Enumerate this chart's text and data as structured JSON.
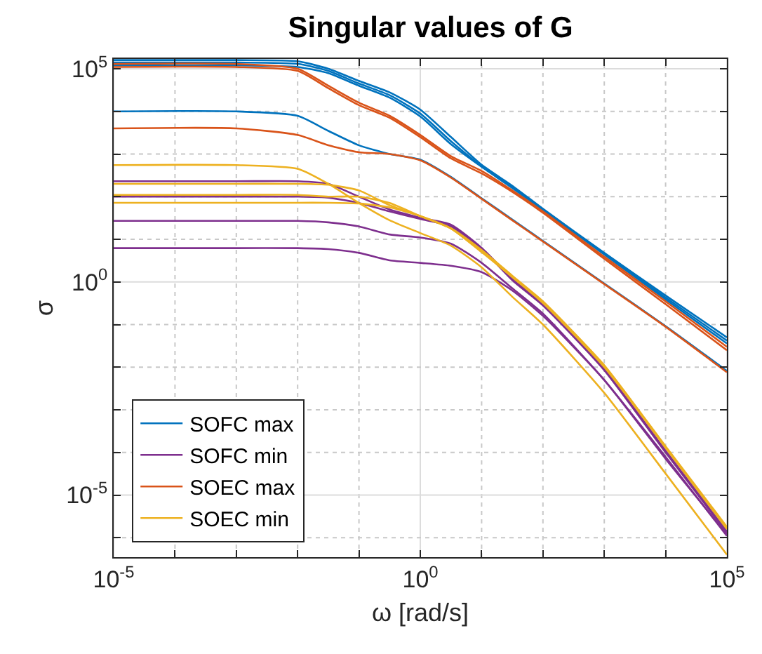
{
  "chart_data": {
    "type": "line",
    "title": "Singular values of G",
    "xlabel": "ω [rad/s]",
    "ylabel": "σ",
    "log": "xy",
    "grid": true,
    "legend": "bottom left",
    "line_style": "solid",
    "marker": "none",
    "x": [
      1e-05,
      0.001,
      0.01,
      0.0316,
      0.1,
      0.316,
      1,
      3.16,
      10,
      31.6,
      100,
      1000,
      10000,
      100000
    ],
    "xlim": [
      1e-05,
      100000
    ],
    "ylim": [
      3.5e-07,
      170000
    ],
    "xticks": [
      {
        "value": 1e-05,
        "label": "10$^{-5}$"
      },
      {
        "value": 0.0001,
        "label": null
      },
      {
        "value": 0.001,
        "label": null
      },
      {
        "value": 0.01,
        "label": null
      },
      {
        "value": 0.1,
        "label": null
      },
      {
        "value": 1,
        "label": "10$^{0}$"
      },
      {
        "value": 10,
        "label": null
      },
      {
        "value": 100,
        "label": null
      },
      {
        "value": 1000,
        "label": null
      },
      {
        "value": 10000,
        "label": null
      },
      {
        "value": 100000,
        "label": "10$^{5}$"
      }
    ],
    "yticks": [
      {
        "value": 1e-06,
        "label": null
      },
      {
        "value": 1e-05,
        "label": "10$^{-5}$"
      },
      {
        "value": 0.0001,
        "label": null
      },
      {
        "value": 0.001,
        "label": null
      },
      {
        "value": 0.01,
        "label": null
      },
      {
        "value": 0.1,
        "label": null
      },
      {
        "value": 1,
        "label": "10$^{0}$"
      },
      {
        "value": 10,
        "label": null
      },
      {
        "value": 100,
        "label": null
      },
      {
        "value": 1000,
        "label": null
      },
      {
        "value": 10000,
        "label": null
      },
      {
        "value": 100000,
        "label": "10$^{5}$"
      }
    ],
    "series": [
      {
        "name": "SOFC max",
        "color": "#0072bd",
        "values": [
          160000,
          160000,
          150000,
          100000,
          52000,
          28000,
          11000,
          2500,
          560,
          180,
          52,
          4.8,
          0.48,
          0.05
        ]
      },
      {
        "color": "#0072bd",
        "values": [
          140000,
          140000,
          130000,
          89000,
          45000,
          24000,
          8900,
          2000,
          520,
          170,
          50,
          4.6,
          0.43,
          0.042
        ]
      },
      {
        "color": "#0072bd",
        "values": [
          120000,
          120000,
          110000,
          79000,
          40000,
          21000,
          7600,
          1700,
          500,
          160,
          48,
          4.4,
          0.39,
          0.036
        ]
      },
      {
        "color": "#0072bd",
        "values": [
          10000,
          10000,
          7900,
          3500,
          1600,
          1000,
          740,
          290,
          92,
          29,
          9.2,
          0.92,
          0.092,
          0.0082
        ]
      },
      {
        "name": "SOFC min",
        "color": "#7e2f8e",
        "values": [
          230,
          230,
          230,
          200,
          100,
          50,
          32,
          22,
          6.3,
          1.2,
          0.3,
          0.009,
          0.00011,
          1.4e-06
        ]
      },
      {
        "color": "#7e2f8e",
        "values": [
          100,
          100,
          100,
          95,
          71,
          45,
          30,
          20,
          6.0,
          1.1,
          0.28,
          0.0085,
          0.0001,
          1.3e-06
        ]
      },
      {
        "color": "#7e2f8e",
        "values": [
          27,
          27,
          27,
          25,
          20,
          13,
          11,
          7.9,
          2.8,
          0.71,
          0.18,
          0.005,
          7.9e-05,
          1.1e-06
        ]
      },
      {
        "color": "#7e2f8e",
        "values": [
          6.2,
          6.2,
          6.2,
          5.9,
          4.8,
          3.2,
          2.8,
          2.4,
          1.7,
          0.63,
          0.16,
          0.005,
          7.1e-05,
          1.2e-06
        ]
      },
      {
        "name": "SOEC max",
        "color": "#d95319",
        "values": [
          130000,
          130000,
          100000,
          40000,
          16000,
          7900,
          2800,
          890,
          400,
          140,
          45,
          3.9,
          0.35,
          0.03
        ]
      },
      {
        "color": "#d95319",
        "values": [
          110000,
          110000,
          89000,
          35000,
          14000,
          7100,
          2500,
          790,
          350,
          130,
          42,
          3.5,
          0.3,
          0.025
        ]
      },
      {
        "color": "#d95319",
        "values": [
          4000,
          4000,
          2800,
          1600,
          1100,
          1000,
          710,
          280,
          89,
          28,
          8.9,
          0.89,
          0.089,
          0.0076
        ]
      },
      {
        "name": "SOEC min",
        "color": "#edb120",
        "values": [
          550,
          550,
          450,
          200,
          71,
          28,
          14,
          7.1,
          2.2,
          0.45,
          0.1,
          0.0025,
          3.2e-05,
          4e-07
        ]
      },
      {
        "color": "#edb120",
        "values": [
          200,
          200,
          200,
          190,
          140,
          63,
          35,
          18,
          5.6,
          1.4,
          0.35,
          0.011,
          0.00014,
          1.8e-06
        ]
      },
      {
        "color": "#edb120",
        "values": [
          110,
          110,
          110,
          100,
          100,
          71,
          35,
          18,
          5.2,
          1.3,
          0.33,
          0.011,
          0.00013,
          1.7e-06
        ]
      },
      {
        "color": "#edb120",
        "values": [
          72,
          72,
          72,
          72,
          69,
          56,
          35,
          18,
          5.0,
          1.3,
          0.32,
          0.01,
          0.00013,
          1.6e-06
        ]
      }
    ]
  }
}
